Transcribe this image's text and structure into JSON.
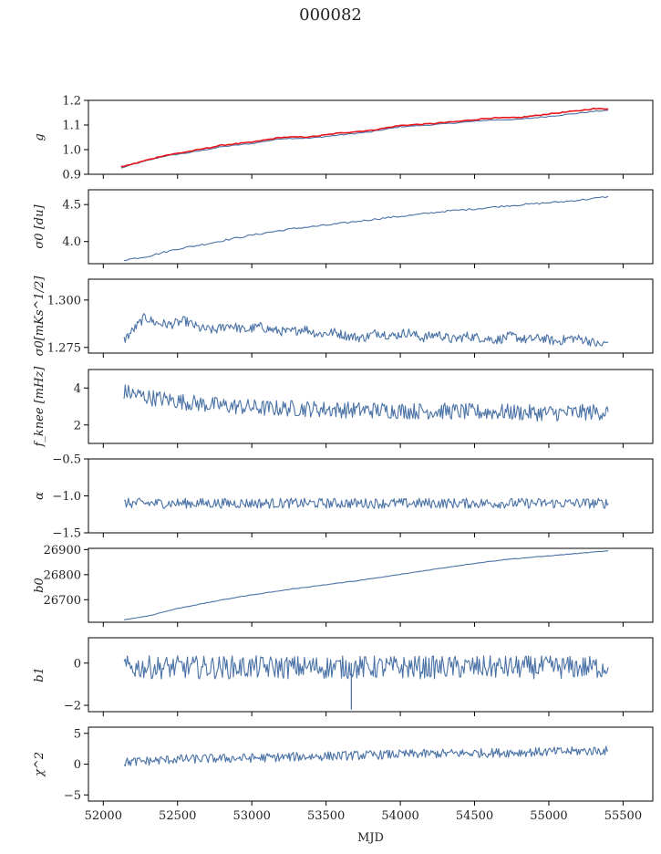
{
  "title": "000082",
  "xlabel": "MJD",
  "chart_data": [
    {
      "type": "line",
      "id": "g",
      "ylabel": "g",
      "ylim": [
        0.9,
        1.2
      ],
      "yticks": [
        0.9,
        1.0,
        1.1,
        1.2
      ],
      "yticklabels": [
        "0.9",
        "1.0",
        "1.1",
        "1.2"
      ],
      "series": [
        {
          "color": "#4a72a6",
          "points": [
            [
              52120,
              0.925
            ],
            [
              52200,
              0.94
            ],
            [
              52400,
              0.972
            ],
            [
              52600,
              0.99
            ],
            [
              52800,
              1.012
            ],
            [
              53000,
              1.025
            ],
            [
              53200,
              1.045
            ],
            [
              53400,
              1.047
            ],
            [
              53600,
              1.06
            ],
            [
              53800,
              1.072
            ],
            [
              54000,
              1.093
            ],
            [
              54200,
              1.1
            ],
            [
              54400,
              1.11
            ],
            [
              54600,
              1.12
            ],
            [
              54800,
              1.123
            ],
            [
              55000,
              1.135
            ],
            [
              55200,
              1.148
            ],
            [
              55300,
              1.155
            ],
            [
              55400,
              1.16
            ]
          ]
        },
        {
          "color": "#e8141a",
          "points": [
            [
              52120,
              0.93
            ],
            [
              52200,
              0.942
            ],
            [
              52400,
              0.975
            ],
            [
              52600,
              0.995
            ],
            [
              52800,
              1.018
            ],
            [
              53000,
              1.03
            ],
            [
              53200,
              1.05
            ],
            [
              53400,
              1.052
            ],
            [
              53600,
              1.068
            ],
            [
              53800,
              1.078
            ],
            [
              54000,
              1.098
            ],
            [
              54200,
              1.105
            ],
            [
              54400,
              1.115
            ],
            [
              54600,
              1.128
            ],
            [
              54800,
              1.13
            ],
            [
              55000,
              1.145
            ],
            [
              55200,
              1.158
            ],
            [
              55300,
              1.166
            ],
            [
              55400,
              1.165
            ]
          ]
        }
      ]
    },
    {
      "type": "line",
      "id": "sigma0",
      "ylabel": "σ0 [du]",
      "ylim": [
        3.7,
        4.7
      ],
      "yticks": [
        4.0,
        4.5
      ],
      "yticklabels": [
        "4.0",
        "4.5"
      ],
      "series": [
        {
          "color": "#4a72a6",
          "points": [
            [
              52140,
              3.75
            ],
            [
              52300,
              3.8
            ],
            [
              52500,
              3.9
            ],
            [
              52700,
              3.97
            ],
            [
              52900,
              4.05
            ],
            [
              53100,
              4.12
            ],
            [
              53300,
              4.18
            ],
            [
              53500,
              4.22
            ],
            [
              53700,
              4.27
            ],
            [
              53900,
              4.32
            ],
            [
              54100,
              4.36
            ],
            [
              54300,
              4.41
            ],
            [
              54500,
              4.44
            ],
            [
              54700,
              4.48
            ],
            [
              54900,
              4.51
            ],
            [
              55100,
              4.54
            ],
            [
              55300,
              4.58
            ],
            [
              55400,
              4.61
            ]
          ]
        }
      ]
    },
    {
      "type": "line",
      "id": "sigma0_mks",
      "ylabel": "σ0[mKs^1/2]",
      "ylim": [
        1.272,
        1.311
      ],
      "yticks": [
        1.275,
        1.3
      ],
      "yticklabels": [
        "1.275",
        "1.300"
      ],
      "series": [
        {
          "color": "#4a72a6",
          "points": [
            [
              52140,
              1.279
            ],
            [
              52200,
              1.284
            ],
            [
              52280,
              1.291
            ],
            [
              52350,
              1.288
            ],
            [
              52450,
              1.287
            ],
            [
              52550,
              1.289
            ],
            [
              52650,
              1.285
            ],
            [
              52750,
              1.284
            ],
            [
              52850,
              1.287
            ],
            [
              52950,
              1.284
            ],
            [
              53050,
              1.286
            ],
            [
              53150,
              1.284
            ],
            [
              53250,
              1.283
            ],
            [
              53350,
              1.285
            ],
            [
              53450,
              1.282
            ],
            [
              53550,
              1.283
            ],
            [
              53650,
              1.281
            ],
            [
              53750,
              1.28
            ],
            [
              53850,
              1.283
            ],
            [
              53950,
              1.281
            ],
            [
              54050,
              1.283
            ],
            [
              54150,
              1.28
            ],
            [
              54250,
              1.282
            ],
            [
              54350,
              1.279
            ],
            [
              54450,
              1.281
            ],
            [
              54550,
              1.28
            ],
            [
              54650,
              1.279
            ],
            [
              54750,
              1.281
            ],
            [
              54850,
              1.279
            ],
            [
              54950,
              1.28
            ],
            [
              55050,
              1.278
            ],
            [
              55150,
              1.28
            ],
            [
              55250,
              1.279
            ],
            [
              55350,
              1.276
            ],
            [
              55400,
              1.278
            ]
          ]
        }
      ]
    },
    {
      "type": "line",
      "id": "fknee",
      "ylabel": "f_knee [mHz]",
      "ylim": [
        1.0,
        5.0
      ],
      "yticks": [
        2,
        4
      ],
      "yticklabels": [
        "2",
        "4"
      ],
      "series": [
        {
          "color": "#4a72a6",
          "points": [
            [
              52140,
              3.8
            ],
            [
              52300,
              3.5
            ],
            [
              52500,
              3.3
            ],
            [
              52700,
              3.1
            ],
            [
              52900,
              3.0
            ],
            [
              53100,
              2.9
            ],
            [
              53300,
              2.9
            ],
            [
              53500,
              2.85
            ],
            [
              53700,
              2.8
            ],
            [
              53900,
              2.8
            ],
            [
              54100,
              2.75
            ],
            [
              54300,
              2.75
            ],
            [
              54500,
              2.7
            ],
            [
              54700,
              2.7
            ],
            [
              54900,
              2.65
            ],
            [
              55100,
              2.65
            ],
            [
              55300,
              2.7
            ],
            [
              55400,
              2.7
            ]
          ]
        }
      ]
    },
    {
      "type": "line",
      "id": "alpha",
      "ylabel": "α",
      "ylim": [
        -1.5,
        -0.5
      ],
      "yticks": [
        -1.5,
        -1.0,
        -0.5
      ],
      "yticklabels": [
        "−1.5",
        "−1.0",
        "−0.5"
      ],
      "series": [
        {
          "color": "#4a72a6",
          "points": [
            [
              52140,
              -1.1
            ],
            [
              55400,
              -1.1
            ]
          ]
        }
      ]
    },
    {
      "type": "line",
      "id": "b0",
      "ylabel": "b0",
      "ylim": [
        26610,
        26905
      ],
      "yticks": [
        26700,
        26800,
        26900
      ],
      "yticklabels": [
        "26700",
        "26800",
        "26900"
      ],
      "series": [
        {
          "color": "#4a72a6",
          "points": [
            [
              52140,
              26620
            ],
            [
              52300,
              26635
            ],
            [
              52500,
              26665
            ],
            [
              52700,
              26688
            ],
            [
              52900,
              26710
            ],
            [
              53100,
              26728
            ],
            [
              53300,
              26745
            ],
            [
              53500,
              26760
            ],
            [
              53700,
              26775
            ],
            [
              53900,
              26792
            ],
            [
              54100,
              26810
            ],
            [
              54300,
              26828
            ],
            [
              54500,
              26845
            ],
            [
              54700,
              26860
            ],
            [
              54900,
              26870
            ],
            [
              55100,
              26880
            ],
            [
              55300,
              26890
            ],
            [
              55400,
              26895
            ]
          ]
        }
      ]
    },
    {
      "type": "line",
      "id": "b1",
      "ylabel": "b1",
      "ylim": [
        -2.3,
        1.2
      ],
      "yticks": [
        -2,
        0
      ],
      "yticklabels": [
        "−2",
        "0"
      ],
      "series": [
        {
          "color": "#4a72a6",
          "points": [
            [
              52140,
              -0.2
            ],
            [
              55400,
              -0.2
            ]
          ]
        }
      ]
    },
    {
      "type": "line",
      "id": "chi2",
      "ylabel": "χ^2",
      "ylim": [
        -6,
        6
      ],
      "yticks": [
        -5,
        0,
        5
      ],
      "yticklabels": [
        "−5",
        "0",
        "5"
      ],
      "series": [
        {
          "color": "#4a72a6",
          "points": [
            [
              52140,
              0.3
            ],
            [
              52500,
              0.8
            ],
            [
              53000,
              1.0
            ],
            [
              53500,
              1.3
            ],
            [
              54000,
              1.6
            ],
            [
              54500,
              1.8
            ],
            [
              55000,
              2.0
            ],
            [
              55400,
              2.2
            ]
          ]
        }
      ]
    }
  ],
  "xaxis": {
    "xlim": [
      51900,
      55700
    ],
    "xticks": [
      52000,
      52500,
      53000,
      53500,
      54000,
      54500,
      55000,
      55500
    ],
    "xticklabels": [
      "52000",
      "52500",
      "53000",
      "53500",
      "54000",
      "54500",
      "55000",
      "55500"
    ]
  }
}
